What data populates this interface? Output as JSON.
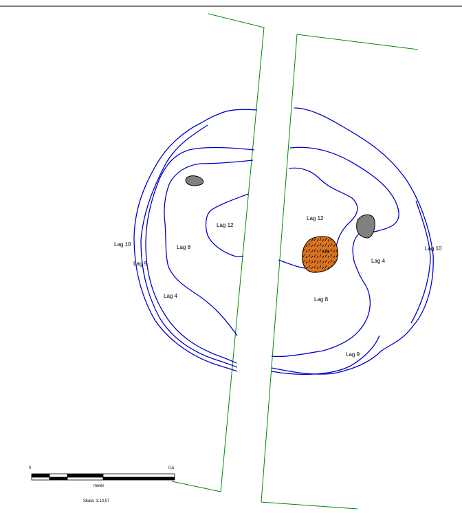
{
  "labels": {
    "left_lag10": "Lag 10",
    "left_lag9": "Lag 9",
    "left_lag8": "Lag 8",
    "left_lag12": "Lag 12",
    "left_lag4": "Lag 4",
    "right_lag12": "Lag 12",
    "right_a26": "A26",
    "right_lag4": "Lag 4",
    "right_lag10": "Lag 10",
    "right_lag8": "Lag 8",
    "right_lag9": "Lag 9"
  },
  "scale_bar": {
    "start_label": "0",
    "end_label": "0,5",
    "unit_label": "meter",
    "scale_text": "Skala: 1:10,07"
  },
  "colors": {
    "contour": "#0000cc",
    "section": "#008800",
    "stone": "#808080",
    "feature_fill": "#d9731f",
    "outline": "#000000"
  }
}
